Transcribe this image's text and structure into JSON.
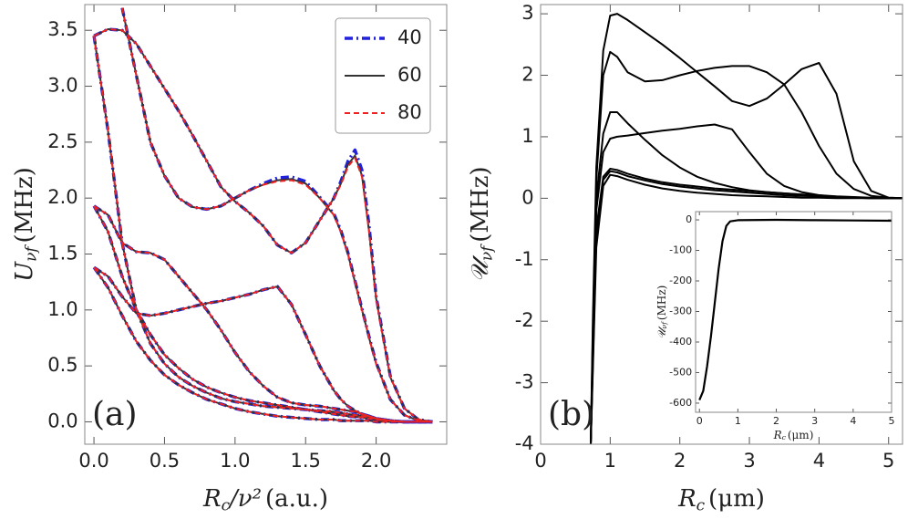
{
  "chart_data": [
    {
      "type": "line",
      "panel_label": "(a)",
      "xlabel": {
        "symbol": "R",
        "sub": "c",
        "rest": "/ν²",
        "unit": "(a.u.)"
      },
      "ylabel": {
        "symbol": "U",
        "sub": "νf",
        "unit": "(MHz)"
      },
      "xlim": [
        -0.065,
        2.5
      ],
      "ylim": [
        -0.2,
        3.73
      ],
      "xticks": [
        {
          "value": 0,
          "label": "0.0"
        },
        0.5,
        {
          "value": 1,
          "label": "1.0"
        },
        1.5,
        {
          "value": 2,
          "label": "2.0"
        }
      ],
      "yticks": [
        {
          "value": 0,
          "label": "0.0"
        },
        0.5,
        {
          "value": 1,
          "label": "1.0"
        },
        1.5,
        {
          "value": 2,
          "label": "2.0"
        },
        2.5,
        {
          "value": 3,
          "label": "3.0"
        },
        3.5
      ],
      "legend": "upper right",
      "x": [
        0,
        0.1,
        0.2,
        0.3,
        0.4,
        0.5,
        0.6,
        0.7,
        0.8,
        0.9,
        1.0,
        1.1,
        1.2,
        1.3,
        1.4,
        1.5,
        1.6,
        1.7,
        1.75,
        1.8,
        1.85,
        1.9,
        1.95,
        2.0,
        2.1,
        2.2,
        2.3,
        2.4
      ],
      "series": [
        {
          "name": "40",
          "color": "#2222dd",
          "style": "dashdot",
          "curves": [
            [
              3.45,
              3.51,
              3.5,
              3.38,
              3.18,
              2.98,
              2.78,
              2.56,
              2.33,
              2.1,
              1.97,
              1.87,
              1.75,
              1.58,
              1.51,
              1.6,
              1.8,
              2.0,
              2.15,
              2.33,
              2.43,
              2.25,
              1.75,
              1.12,
              0.41,
              0.12,
              0.02,
              0
            ],
            [
              null,
              null,
              3.7,
              3.1,
              2.5,
              2.2,
              2.0,
              1.92,
              1.9,
              1.93,
              2.0,
              2.07,
              2.13,
              2.18,
              2.19,
              2.15,
              2.01,
              1.86,
              1.71,
              1.51,
              1.26,
              1.01,
              0.76,
              0.53,
              0.2,
              0.06,
              0.01,
              0
            ],
            [
              1.93,
              1.85,
              1.6,
              1.52,
              1.51,
              1.45,
              1.3,
              1.15,
              1.0,
              0.82,
              0.62,
              0.45,
              0.32,
              0.22,
              0.17,
              0.15,
              0.14,
              0.12,
              0.11,
              0.1,
              0.09,
              0.07,
              0.05,
              0.03,
              0.01,
              0,
              0,
              0
            ],
            [
              1.93,
              1.7,
              1.3,
              1.0,
              0.78,
              0.6,
              0.48,
              0.38,
              0.31,
              0.26,
              0.22,
              0.19,
              0.17,
              0.15,
              0.13,
              0.11,
              0.09,
              0.07,
              0.06,
              0.05,
              0.045,
              0.04,
              0.03,
              0.02,
              0.01,
              0,
              0,
              0
            ],
            [
              1.38,
              1.3,
              1.12,
              0.97,
              0.95,
              0.97,
              1.0,
              1.03,
              1.06,
              1.08,
              1.11,
              1.14,
              1.18,
              1.21,
              1.05,
              0.78,
              0.5,
              0.28,
              0.2,
              0.14,
              0.1,
              0.07,
              0.05,
              0.03,
              0.01,
              0,
              0,
              0
            ],
            [
              1.38,
              1.2,
              0.95,
              0.72,
              0.55,
              0.42,
              0.33,
              0.26,
              0.2,
              0.16,
              0.12,
              0.09,
              0.07,
              0.05,
              0.04,
              0.03,
              0.02,
              0.02,
              0.01,
              0.01,
              0.01,
              0.01,
              0.01,
              0,
              0,
              0,
              0,
              0
            ],
            [
              3.45,
              2.6,
              1.6,
              1.0,
              0.7,
              0.52,
              0.4,
              0.32,
              0.26,
              0.21,
              0.18,
              0.16,
              0.14,
              0.13,
              0.12,
              0.11,
              0.1,
              0.09,
              0.08,
              0.07,
              0.06,
              0.05,
              0.04,
              0.03,
              0.01,
              0,
              0,
              0
            ]
          ]
        },
        {
          "name": "60",
          "color": "#333333",
          "style": "solid",
          "curves": [
            [
              3.45,
              3.51,
              3.5,
              3.38,
              3.18,
              2.98,
              2.78,
              2.56,
              2.33,
              2.1,
              1.97,
              1.87,
              1.75,
              1.58,
              1.51,
              1.6,
              1.8,
              2.0,
              2.13,
              2.3,
              2.38,
              2.2,
              1.7,
              1.1,
              0.4,
              0.12,
              0.02,
              0
            ],
            [
              null,
              null,
              3.7,
              3.1,
              2.5,
              2.2,
              2.0,
              1.92,
              1.9,
              1.93,
              2.0,
              2.07,
              2.12,
              2.16,
              2.17,
              2.13,
              2.0,
              1.85,
              1.7,
              1.5,
              1.25,
              1.0,
              0.75,
              0.52,
              0.2,
              0.06,
              0.01,
              0
            ],
            [
              1.93,
              1.85,
              1.6,
              1.52,
              1.51,
              1.45,
              1.3,
              1.15,
              1.0,
              0.82,
              0.62,
              0.45,
              0.32,
              0.22,
              0.17,
              0.15,
              0.14,
              0.12,
              0.11,
              0.1,
              0.09,
              0.07,
              0.05,
              0.03,
              0.01,
              0,
              0,
              0
            ],
            [
              1.93,
              1.7,
              1.3,
              1.0,
              0.78,
              0.6,
              0.48,
              0.38,
              0.31,
              0.26,
              0.22,
              0.19,
              0.17,
              0.15,
              0.13,
              0.11,
              0.09,
              0.07,
              0.06,
              0.05,
              0.045,
              0.04,
              0.03,
              0.02,
              0.01,
              0,
              0,
              0
            ],
            [
              1.38,
              1.3,
              1.12,
              0.97,
              0.95,
              0.97,
              1.0,
              1.03,
              1.06,
              1.08,
              1.11,
              1.14,
              1.18,
              1.21,
              1.05,
              0.78,
              0.5,
              0.28,
              0.2,
              0.14,
              0.1,
              0.07,
              0.05,
              0.03,
              0.01,
              0,
              0,
              0
            ],
            [
              1.38,
              1.2,
              0.95,
              0.72,
              0.55,
              0.42,
              0.33,
              0.26,
              0.2,
              0.16,
              0.12,
              0.09,
              0.07,
              0.05,
              0.04,
              0.03,
              0.02,
              0.02,
              0.01,
              0.01,
              0.01,
              0.01,
              0.01,
              0,
              0,
              0,
              0,
              0
            ],
            [
              3.45,
              2.6,
              1.6,
              1.0,
              0.7,
              0.52,
              0.4,
              0.32,
              0.26,
              0.21,
              0.18,
              0.16,
              0.14,
              0.13,
              0.12,
              0.11,
              0.1,
              0.09,
              0.08,
              0.07,
              0.06,
              0.05,
              0.04,
              0.03,
              0.01,
              0,
              0,
              0
            ]
          ]
        },
        {
          "name": "80",
          "color": "#ee2222",
          "style": "dashed",
          "curves": [
            [
              3.45,
              3.51,
              3.5,
              3.38,
              3.18,
              2.98,
              2.78,
              2.56,
              2.33,
              2.1,
              1.97,
              1.87,
              1.75,
              1.58,
              1.51,
              1.6,
              1.8,
              2.0,
              2.12,
              2.28,
              2.36,
              2.19,
              1.7,
              1.1,
              0.4,
              0.12,
              0.02,
              0
            ],
            [
              null,
              null,
              3.7,
              3.1,
              2.5,
              2.2,
              2.0,
              1.92,
              1.9,
              1.93,
              2.0,
              2.07,
              2.12,
              2.15,
              2.16,
              2.12,
              2.0,
              1.85,
              1.7,
              1.5,
              1.25,
              1.0,
              0.75,
              0.52,
              0.2,
              0.06,
              0.01,
              0
            ],
            [
              1.93,
              1.85,
              1.6,
              1.52,
              1.51,
              1.45,
              1.3,
              1.15,
              1.0,
              0.82,
              0.62,
              0.45,
              0.32,
              0.22,
              0.17,
              0.15,
              0.14,
              0.12,
              0.11,
              0.1,
              0.09,
              0.07,
              0.05,
              0.03,
              0.01,
              0,
              0,
              0
            ],
            [
              1.93,
              1.7,
              1.3,
              1.0,
              0.78,
              0.6,
              0.48,
              0.38,
              0.31,
              0.26,
              0.22,
              0.19,
              0.17,
              0.15,
              0.13,
              0.11,
              0.09,
              0.07,
              0.06,
              0.05,
              0.045,
              0.04,
              0.03,
              0.02,
              0.01,
              0,
              0,
              0
            ],
            [
              1.38,
              1.3,
              1.12,
              0.97,
              0.95,
              0.97,
              1.0,
              1.03,
              1.06,
              1.08,
              1.11,
              1.14,
              1.18,
              1.21,
              1.05,
              0.78,
              0.5,
              0.28,
              0.2,
              0.14,
              0.1,
              0.07,
              0.05,
              0.03,
              0.01,
              0,
              0,
              0
            ],
            [
              1.38,
              1.2,
              0.95,
              0.72,
              0.55,
              0.42,
              0.33,
              0.26,
              0.2,
              0.16,
              0.12,
              0.09,
              0.07,
              0.05,
              0.04,
              0.03,
              0.02,
              0.02,
              0.01,
              0.01,
              0.01,
              0.01,
              0.01,
              0,
              0,
              0,
              0,
              0
            ],
            [
              3.45,
              2.6,
              1.6,
              1.0,
              0.7,
              0.52,
              0.4,
              0.32,
              0.26,
              0.21,
              0.18,
              0.16,
              0.14,
              0.13,
              0.12,
              0.11,
              0.1,
              0.09,
              0.08,
              0.07,
              0.06,
              0.05,
              0.04,
              0.03,
              0.01,
              0,
              0,
              0
            ]
          ]
        }
      ]
    },
    {
      "type": "line",
      "panel_label": "(b)",
      "xlabel": {
        "symbol": "R",
        "sub": "c",
        "unit": "(μm)"
      },
      "ylabel": {
        "symbol": "𝒰",
        "sub": "νf",
        "unit": "(MHz)"
      },
      "xlim": [
        0,
        5.2
      ],
      "ylim": [
        -4,
        3.15
      ],
      "xticks": [
        0,
        1,
        2,
        3,
        4,
        5
      ],
      "yticks": [
        -4,
        -3,
        -2,
        -1,
        0,
        1,
        2,
        3
      ],
      "x": [
        0.72,
        0.75,
        0.8,
        0.9,
        1.0,
        1.1,
        1.25,
        1.5,
        1.75,
        2.0,
        2.25,
        2.5,
        2.75,
        3.0,
        3.25,
        3.5,
        3.75,
        4.0,
        4.25,
        4.5,
        4.75,
        5.0,
        5.2
      ],
      "series": [
        {
          "color": "#000000",
          "style": "solid",
          "curves": [
            [
              -4,
              -2,
              0.5,
              2.4,
              2.97,
              3.0,
              2.9,
              2.7,
              2.5,
              2.28,
              2.05,
              1.82,
              1.58,
              1.5,
              1.62,
              1.85,
              2.1,
              2.2,
              1.7,
              0.6,
              0.12,
              0.01,
              0
            ],
            [
              -4,
              -2.2,
              0.3,
              2.0,
              2.38,
              2.3,
              2.05,
              1.9,
              1.92,
              2.0,
              2.07,
              2.12,
              2.15,
              2.15,
              2.05,
              1.85,
              1.4,
              0.85,
              0.4,
              0.15,
              0.04,
              0.01,
              0
            ],
            [
              -4,
              -2.4,
              0,
              1.05,
              1.4,
              1.4,
              1.22,
              0.95,
              0.7,
              0.5,
              0.35,
              0.25,
              0.18,
              0.13,
              0.1,
              0.08,
              0.06,
              0.05,
              0.03,
              0.02,
              0.01,
              0,
              0
            ],
            [
              -4,
              -2.5,
              -0.2,
              0.75,
              0.97,
              1.0,
              1.02,
              1.06,
              1.1,
              1.13,
              1.17,
              1.2,
              1.12,
              0.75,
              0.4,
              0.2,
              0.1,
              0.05,
              0.02,
              0.01,
              0,
              0,
              0
            ],
            [
              -4,
              -2.6,
              -0.5,
              0.35,
              0.48,
              0.46,
              0.4,
              0.32,
              0.26,
              0.22,
              0.19,
              0.16,
              0.14,
              0.12,
              0.1,
              0.08,
              0.06,
              0.04,
              0.02,
              0.01,
              0,
              0,
              0
            ],
            [
              -4,
              -2.7,
              -0.6,
              0.3,
              0.44,
              0.42,
              0.36,
              0.29,
              0.23,
              0.19,
              0.16,
              0.13,
              0.11,
              0.09,
              0.07,
              0.05,
              0.04,
              0.03,
              0.02,
              0.01,
              0,
              0,
              0
            ],
            [
              -4,
              -2.8,
              -0.8,
              0.2,
              0.38,
              0.36,
              0.3,
              0.22,
              0.16,
              0.12,
              0.09,
              0.07,
              0.05,
              0.04,
              0.03,
              0.02,
              0.01,
              0.01,
              0,
              0,
              0,
              0,
              0
            ]
          ]
        }
      ]
    },
    {
      "type": "line",
      "inset": true,
      "xlabel": {
        "symbol": "R",
        "sub": "c",
        "unit": "(μm)"
      },
      "ylabel": {
        "symbol": "𝒰",
        "sub": "νf",
        "unit": "(MHz)"
      },
      "xlim": [
        -0.1,
        5
      ],
      "ylim": [
        -630,
        27
      ],
      "xticks": [
        0,
        1,
        2,
        3,
        4,
        5
      ],
      "yticks": [
        -600,
        -500,
        -400,
        -300,
        -200,
        -100,
        0
      ],
      "x": [
        0,
        0.1,
        0.2,
        0.3,
        0.4,
        0.5,
        0.6,
        0.7,
        0.8,
        1,
        2,
        3,
        4,
        5
      ],
      "series": [
        {
          "color": "#000000",
          "style": "solid",
          "curves": [
            [
              -590,
              -560,
              -480,
              -380,
              -270,
              -160,
              -70,
              -20,
              -5,
              -1,
              0,
              -1,
              -2,
              -3
            ]
          ]
        }
      ]
    }
  ]
}
